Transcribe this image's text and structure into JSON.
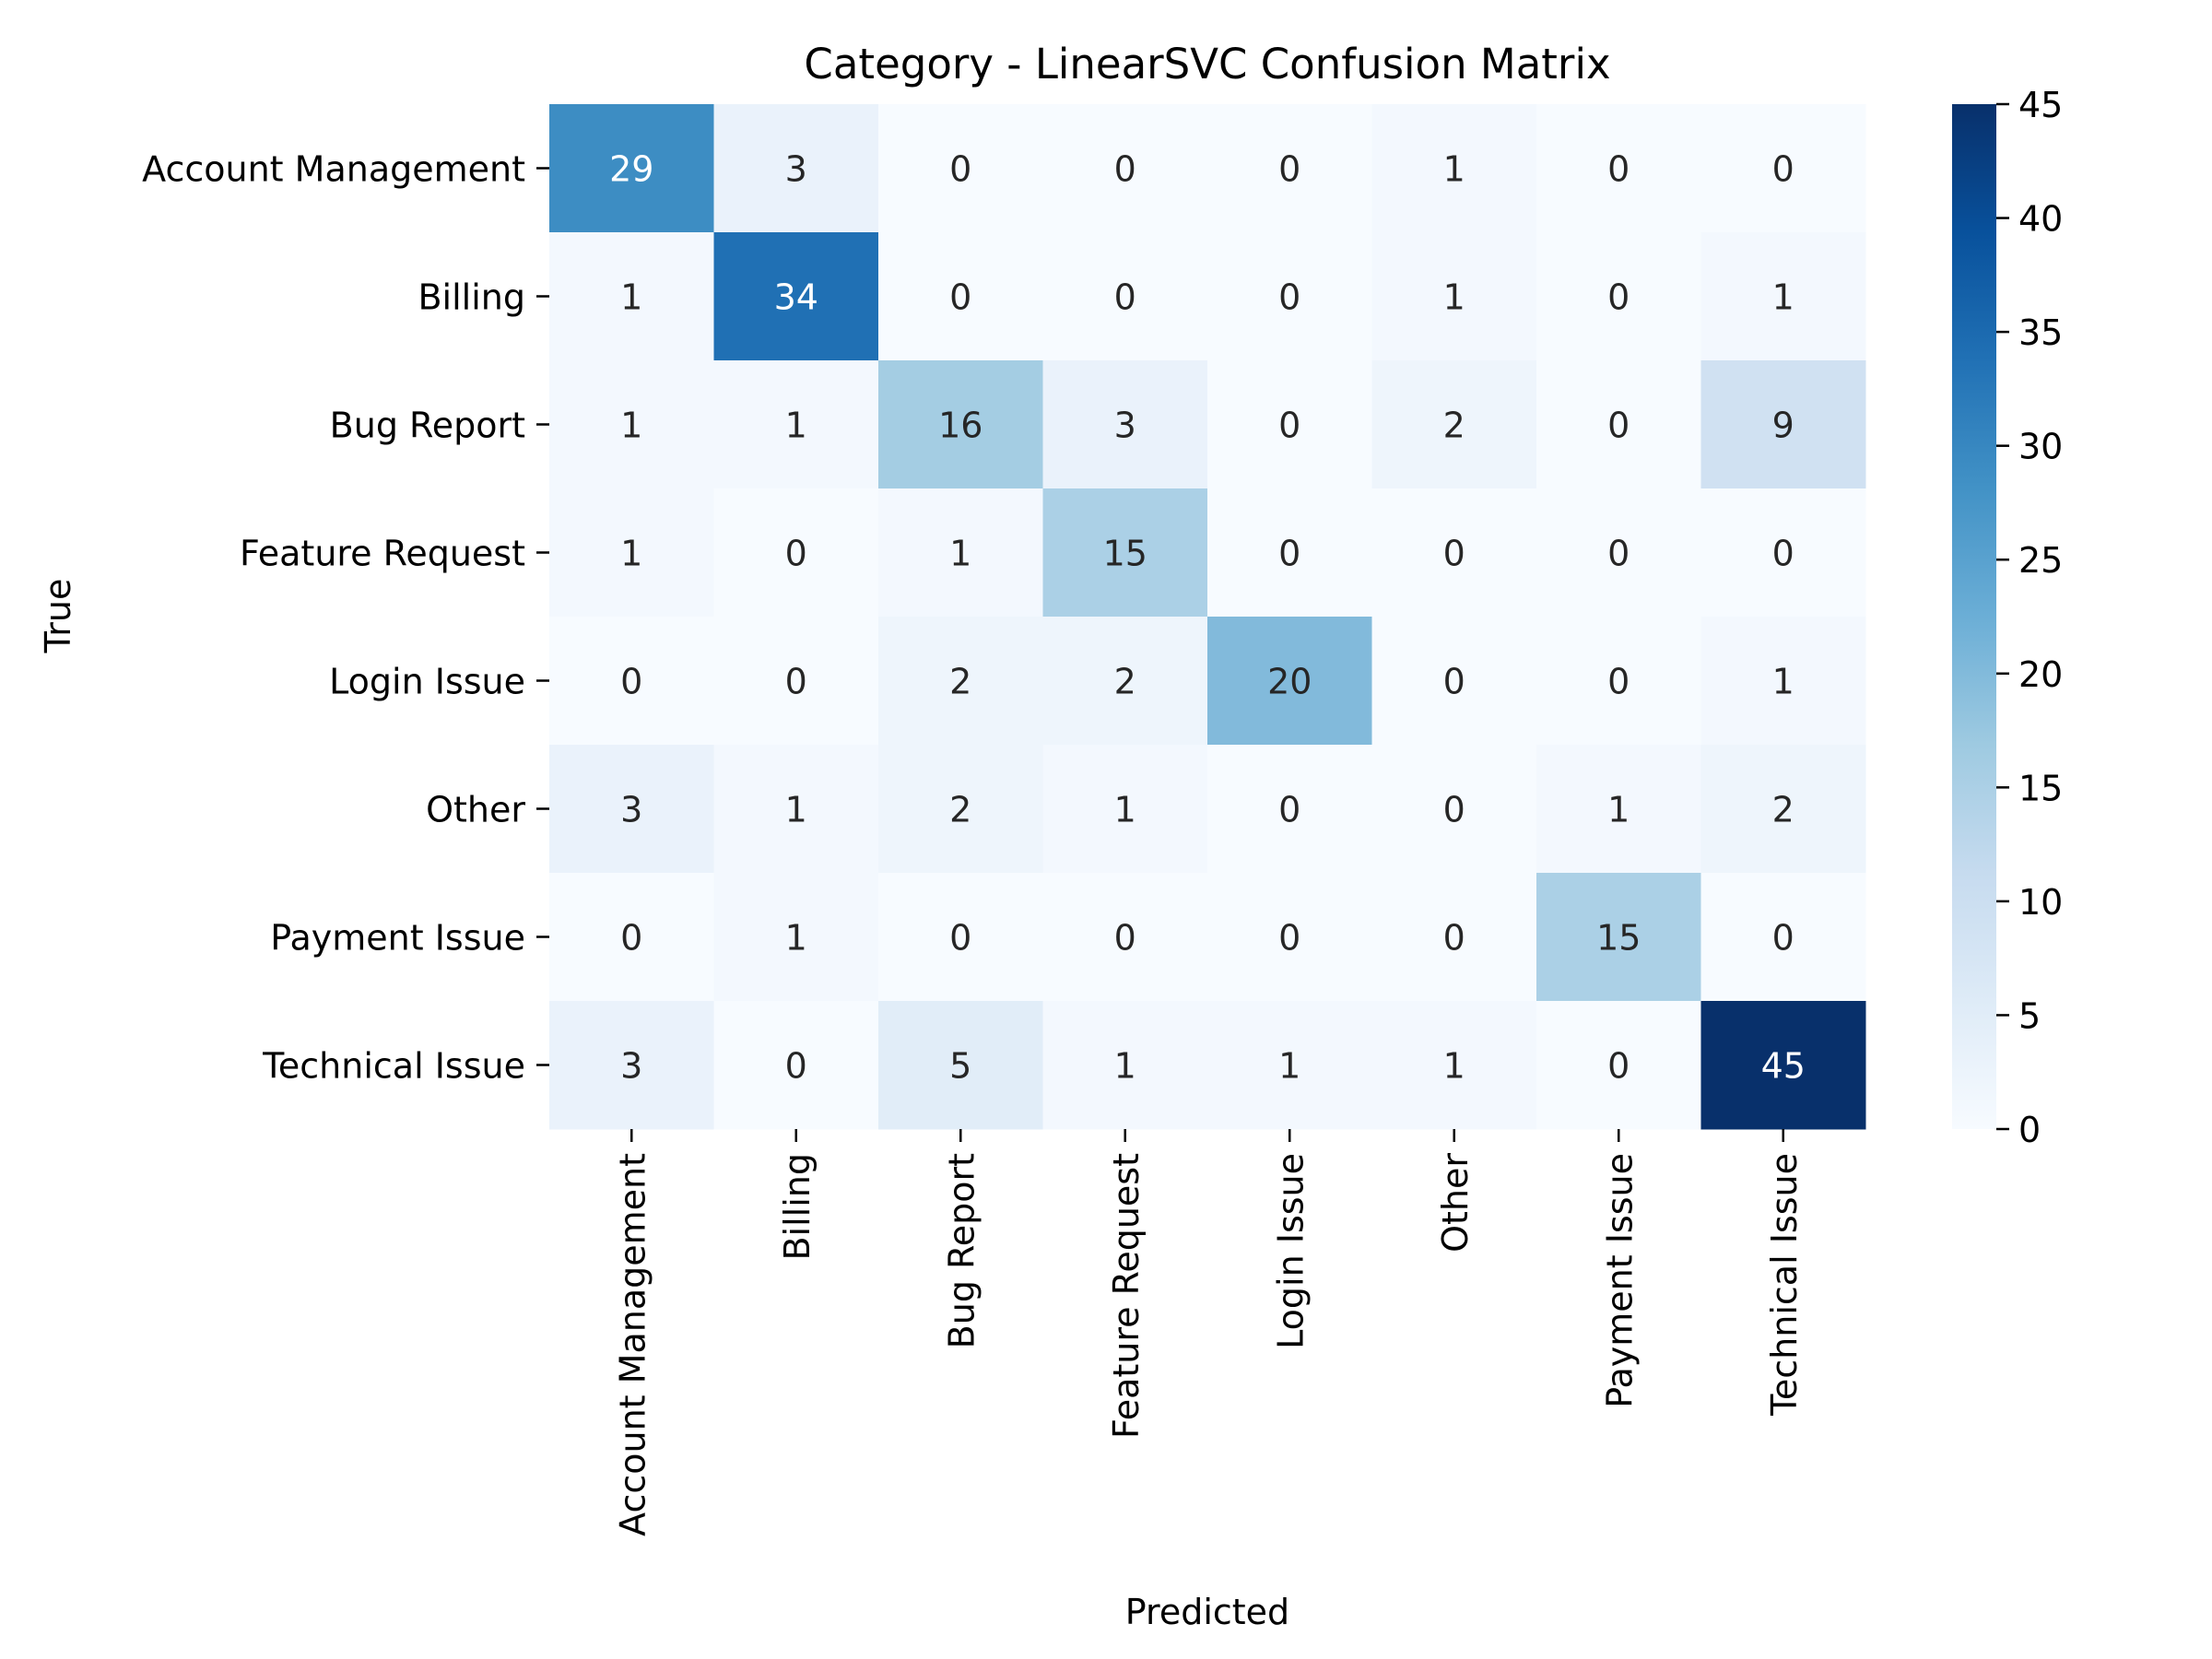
{
  "chart_data": {
    "type": "heatmap",
    "title": "Category - LinearSVC Confusion Matrix",
    "xlabel": "Predicted",
    "ylabel": "True",
    "row_labels": [
      "Account Management",
      "Billing",
      "Bug Report",
      "Feature Request",
      "Login Issue",
      "Other",
      "Payment Issue",
      "Technical Issue"
    ],
    "col_labels": [
      "Account Management",
      "Billing",
      "Bug Report",
      "Feature Request",
      "Login Issue",
      "Other",
      "Payment Issue",
      "Technical Issue"
    ],
    "values": [
      [
        29,
        3,
        0,
        0,
        0,
        1,
        0,
        0
      ],
      [
        1,
        34,
        0,
        0,
        0,
        1,
        0,
        1
      ],
      [
        1,
        1,
        16,
        3,
        0,
        2,
        0,
        9
      ],
      [
        1,
        0,
        1,
        15,
        0,
        0,
        0,
        0
      ],
      [
        0,
        0,
        2,
        2,
        20,
        0,
        0,
        1
      ],
      [
        3,
        1,
        2,
        1,
        0,
        0,
        1,
        2
      ],
      [
        0,
        1,
        0,
        0,
        0,
        0,
        15,
        0
      ],
      [
        3,
        0,
        5,
        1,
        1,
        1,
        0,
        45
      ]
    ],
    "colorbar": {
      "colormap": "Blues",
      "range": [
        0,
        45
      ],
      "ticks": [
        0,
        5,
        10,
        15,
        20,
        25,
        30,
        35,
        40,
        45
      ]
    },
    "annotations": "cell counts"
  }
}
